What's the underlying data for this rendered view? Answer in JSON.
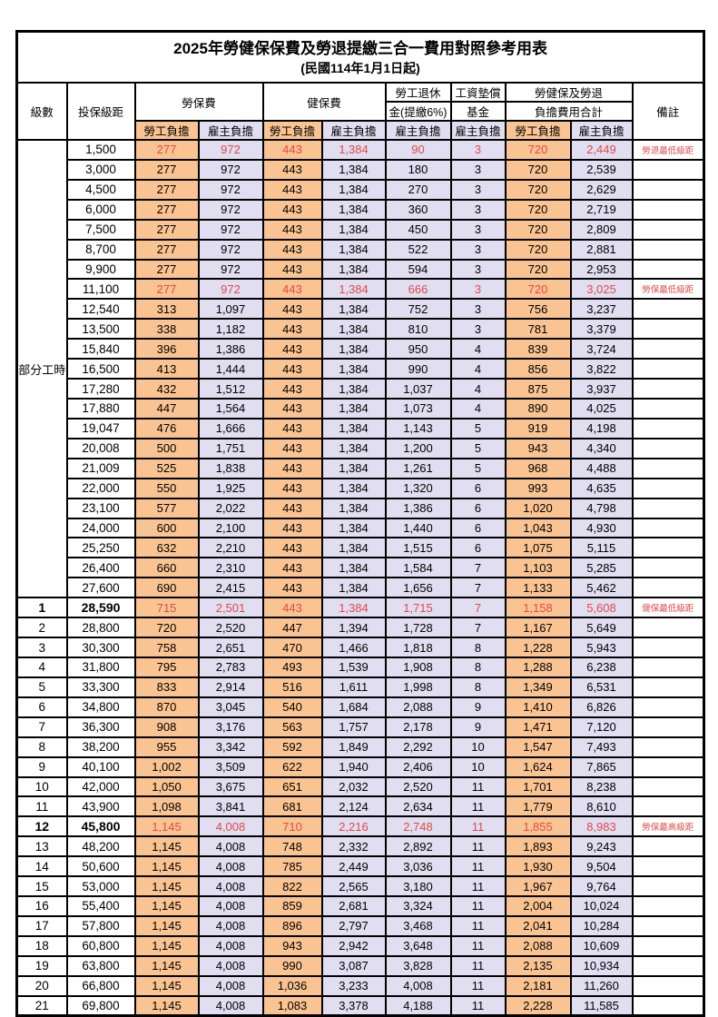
{
  "title": "2025年勞健保保費及勞退提繳三合一費用對照參考用表",
  "subtitle": "(民國114年1月1日起)",
  "colors": {
    "employee_col_bg": "#fac492",
    "employer_col_bg": "#e0def0",
    "highlight_text": "#e04a4a",
    "border": "#000000"
  },
  "header": {
    "level": "級數",
    "salary_bracket": "投保級距",
    "labor_insurance": "勞保費",
    "health_insurance": "健保費",
    "pension_line1": "勞工退休",
    "pension_line2": "金(提繳6%)",
    "wage_fund_line1": "工資墊償",
    "wage_fund_line2": "基金",
    "total_line1": "勞健保及勞退",
    "total_line2": "負擔費用合計",
    "remark": "備註",
    "employee": "勞工負擔",
    "employer": "雇主負擔"
  },
  "table": {
    "part_time": {
      "label": "部分工時",
      "rowspan": 23
    },
    "value_col_types": [
      "emp",
      "er",
      "emp",
      "er",
      "er",
      "er",
      "emp",
      "er"
    ],
    "rows": [
      {
        "level": "",
        "salary": "1,500",
        "values": [
          "277",
          "972",
          "443",
          "1,384",
          "90",
          "3",
          "720",
          "2,449"
        ],
        "note": "勞退最低級距",
        "red": true,
        "bold": false
      },
      {
        "level": "",
        "salary": "3,000",
        "values": [
          "277",
          "972",
          "443",
          "1,384",
          "180",
          "3",
          "720",
          "2,539"
        ],
        "note": "",
        "red": false,
        "bold": false
      },
      {
        "level": "",
        "salary": "4,500",
        "values": [
          "277",
          "972",
          "443",
          "1,384",
          "270",
          "3",
          "720",
          "2,629"
        ],
        "note": "",
        "red": false,
        "bold": false
      },
      {
        "level": "",
        "salary": "6,000",
        "values": [
          "277",
          "972",
          "443",
          "1,384",
          "360",
          "3",
          "720",
          "2,719"
        ],
        "note": "",
        "red": false,
        "bold": false
      },
      {
        "level": "",
        "salary": "7,500",
        "values": [
          "277",
          "972",
          "443",
          "1,384",
          "450",
          "3",
          "720",
          "2,809"
        ],
        "note": "",
        "red": false,
        "bold": false
      },
      {
        "level": "",
        "salary": "8,700",
        "values": [
          "277",
          "972",
          "443",
          "1,384",
          "522",
          "3",
          "720",
          "2,881"
        ],
        "note": "",
        "red": false,
        "bold": false
      },
      {
        "level": "",
        "salary": "9,900",
        "values": [
          "277",
          "972",
          "443",
          "1,384",
          "594",
          "3",
          "720",
          "2,953"
        ],
        "note": "",
        "red": false,
        "bold": false
      },
      {
        "level": "",
        "salary": "11,100",
        "values": [
          "277",
          "972",
          "443",
          "1,384",
          "666",
          "3",
          "720",
          "3,025"
        ],
        "note": "勞保最低級距",
        "red": true,
        "bold": false
      },
      {
        "level": "",
        "salary": "12,540",
        "values": [
          "313",
          "1,097",
          "443",
          "1,384",
          "752",
          "3",
          "756",
          "3,237"
        ],
        "note": "",
        "red": false,
        "bold": false
      },
      {
        "level": "",
        "salary": "13,500",
        "values": [
          "338",
          "1,182",
          "443",
          "1,384",
          "810",
          "3",
          "781",
          "3,379"
        ],
        "note": "",
        "red": false,
        "bold": false
      },
      {
        "level": "",
        "salary": "15,840",
        "values": [
          "396",
          "1,386",
          "443",
          "1,384",
          "950",
          "4",
          "839",
          "3,724"
        ],
        "note": "",
        "red": false,
        "bold": false
      },
      {
        "level": "",
        "salary": "16,500",
        "values": [
          "413",
          "1,444",
          "443",
          "1,384",
          "990",
          "4",
          "856",
          "3,822"
        ],
        "note": "",
        "red": false,
        "bold": false
      },
      {
        "level": "",
        "salary": "17,280",
        "values": [
          "432",
          "1,512",
          "443",
          "1,384",
          "1,037",
          "4",
          "875",
          "3,937"
        ],
        "note": "",
        "red": false,
        "bold": false
      },
      {
        "level": "",
        "salary": "17,880",
        "values": [
          "447",
          "1,564",
          "443",
          "1,384",
          "1,073",
          "4",
          "890",
          "4,025"
        ],
        "note": "",
        "red": false,
        "bold": false
      },
      {
        "level": "",
        "salary": "19,047",
        "values": [
          "476",
          "1,666",
          "443",
          "1,384",
          "1,143",
          "5",
          "919",
          "4,198"
        ],
        "note": "",
        "red": false,
        "bold": false
      },
      {
        "level": "",
        "salary": "20,008",
        "values": [
          "500",
          "1,751",
          "443",
          "1,384",
          "1,200",
          "5",
          "943",
          "4,340"
        ],
        "note": "",
        "red": false,
        "bold": false
      },
      {
        "level": "",
        "salary": "21,009",
        "values": [
          "525",
          "1,838",
          "443",
          "1,384",
          "1,261",
          "5",
          "968",
          "4,488"
        ],
        "note": "",
        "red": false,
        "bold": false
      },
      {
        "level": "",
        "salary": "22,000",
        "values": [
          "550",
          "1,925",
          "443",
          "1,384",
          "1,320",
          "6",
          "993",
          "4,635"
        ],
        "note": "",
        "red": false,
        "bold": false
      },
      {
        "level": "",
        "salary": "23,100",
        "values": [
          "577",
          "2,022",
          "443",
          "1,384",
          "1,386",
          "6",
          "1,020",
          "4,798"
        ],
        "note": "",
        "red": false,
        "bold": false
      },
      {
        "level": "",
        "salary": "24,000",
        "values": [
          "600",
          "2,100",
          "443",
          "1,384",
          "1,440",
          "6",
          "1,043",
          "4,930"
        ],
        "note": "",
        "red": false,
        "bold": false
      },
      {
        "level": "",
        "salary": "25,250",
        "values": [
          "632",
          "2,210",
          "443",
          "1,384",
          "1,515",
          "6",
          "1,075",
          "5,115"
        ],
        "note": "",
        "red": false,
        "bold": false
      },
      {
        "level": "",
        "salary": "26,400",
        "values": [
          "660",
          "2,310",
          "443",
          "1,384",
          "1,584",
          "7",
          "1,103",
          "5,285"
        ],
        "note": "",
        "red": false,
        "bold": false
      },
      {
        "level": "",
        "salary": "27,600",
        "values": [
          "690",
          "2,415",
          "443",
          "1,384",
          "1,656",
          "7",
          "1,133",
          "5,462"
        ],
        "note": "",
        "red": false,
        "bold": false
      },
      {
        "level": "1",
        "salary": "28,590",
        "values": [
          "715",
          "2,501",
          "443",
          "1,384",
          "1,715",
          "7",
          "1,158",
          "5,608"
        ],
        "note": "健保最低級距",
        "red": true,
        "bold": true
      },
      {
        "level": "2",
        "salary": "28,800",
        "values": [
          "720",
          "2,520",
          "447",
          "1,394",
          "1,728",
          "7",
          "1,167",
          "5,649"
        ],
        "note": "",
        "red": false,
        "bold": false
      },
      {
        "level": "3",
        "salary": "30,300",
        "values": [
          "758",
          "2,651",
          "470",
          "1,466",
          "1,818",
          "8",
          "1,228",
          "5,943"
        ],
        "note": "",
        "red": false,
        "bold": false
      },
      {
        "level": "4",
        "salary": "31,800",
        "values": [
          "795",
          "2,783",
          "493",
          "1,539",
          "1,908",
          "8",
          "1,288",
          "6,238"
        ],
        "note": "",
        "red": false,
        "bold": false
      },
      {
        "level": "5",
        "salary": "33,300",
        "values": [
          "833",
          "2,914",
          "516",
          "1,611",
          "1,998",
          "8",
          "1,349",
          "6,531"
        ],
        "note": "",
        "red": false,
        "bold": false
      },
      {
        "level": "6",
        "salary": "34,800",
        "values": [
          "870",
          "3,045",
          "540",
          "1,684",
          "2,088",
          "9",
          "1,410",
          "6,826"
        ],
        "note": "",
        "red": false,
        "bold": false
      },
      {
        "level": "7",
        "salary": "36,300",
        "values": [
          "908",
          "3,176",
          "563",
          "1,757",
          "2,178",
          "9",
          "1,471",
          "7,120"
        ],
        "note": "",
        "red": false,
        "bold": false
      },
      {
        "level": "8",
        "salary": "38,200",
        "values": [
          "955",
          "3,342",
          "592",
          "1,849",
          "2,292",
          "10",
          "1,547",
          "7,493"
        ],
        "note": "",
        "red": false,
        "bold": false
      },
      {
        "level": "9",
        "salary": "40,100",
        "values": [
          "1,002",
          "3,509",
          "622",
          "1,940",
          "2,406",
          "10",
          "1,624",
          "7,865"
        ],
        "note": "",
        "red": false,
        "bold": false
      },
      {
        "level": "10",
        "salary": "42,000",
        "values": [
          "1,050",
          "3,675",
          "651",
          "2,032",
          "2,520",
          "11",
          "1,701",
          "8,238"
        ],
        "note": "",
        "red": false,
        "bold": false
      },
      {
        "level": "11",
        "salary": "43,900",
        "values": [
          "1,098",
          "3,841",
          "681",
          "2,124",
          "2,634",
          "11",
          "1,779",
          "8,610"
        ],
        "note": "",
        "red": false,
        "bold": false
      },
      {
        "level": "12",
        "salary": "45,800",
        "values": [
          "1,145",
          "4,008",
          "710",
          "2,216",
          "2,748",
          "11",
          "1,855",
          "8,983"
        ],
        "note": "勞保最高級距",
        "red": true,
        "bold": true
      },
      {
        "level": "13",
        "salary": "48,200",
        "values": [
          "1,145",
          "4,008",
          "748",
          "2,332",
          "2,892",
          "11",
          "1,893",
          "9,243"
        ],
        "note": "",
        "red": false,
        "bold": false
      },
      {
        "level": "14",
        "salary": "50,600",
        "values": [
          "1,145",
          "4,008",
          "785",
          "2,449",
          "3,036",
          "11",
          "1,930",
          "9,504"
        ],
        "note": "",
        "red": false,
        "bold": false
      },
      {
        "level": "15",
        "salary": "53,000",
        "values": [
          "1,145",
          "4,008",
          "822",
          "2,565",
          "3,180",
          "11",
          "1,967",
          "9,764"
        ],
        "note": "",
        "red": false,
        "bold": false
      },
      {
        "level": "16",
        "salary": "55,400",
        "values": [
          "1,145",
          "4,008",
          "859",
          "2,681",
          "3,324",
          "11",
          "2,004",
          "10,024"
        ],
        "note": "",
        "red": false,
        "bold": false
      },
      {
        "level": "17",
        "salary": "57,800",
        "values": [
          "1,145",
          "4,008",
          "896",
          "2,797",
          "3,468",
          "11",
          "2,041",
          "10,284"
        ],
        "note": "",
        "red": false,
        "bold": false
      },
      {
        "level": "18",
        "salary": "60,800",
        "values": [
          "1,145",
          "4,008",
          "943",
          "2,942",
          "3,648",
          "11",
          "2,088",
          "10,609"
        ],
        "note": "",
        "red": false,
        "bold": false
      },
      {
        "level": "19",
        "salary": "63,800",
        "values": [
          "1,145",
          "4,008",
          "990",
          "3,087",
          "3,828",
          "11",
          "2,135",
          "10,934"
        ],
        "note": "",
        "red": false,
        "bold": false
      },
      {
        "level": "20",
        "salary": "66,800",
        "values": [
          "1,145",
          "4,008",
          "1,036",
          "3,233",
          "4,008",
          "11",
          "2,181",
          "11,260"
        ],
        "note": "",
        "red": false,
        "bold": false
      },
      {
        "level": "21",
        "salary": "69,800",
        "values": [
          "1,145",
          "4,008",
          "1,083",
          "3,378",
          "4,188",
          "11",
          "2,228",
          "11,585"
        ],
        "note": "",
        "red": false,
        "bold": false
      }
    ]
  }
}
